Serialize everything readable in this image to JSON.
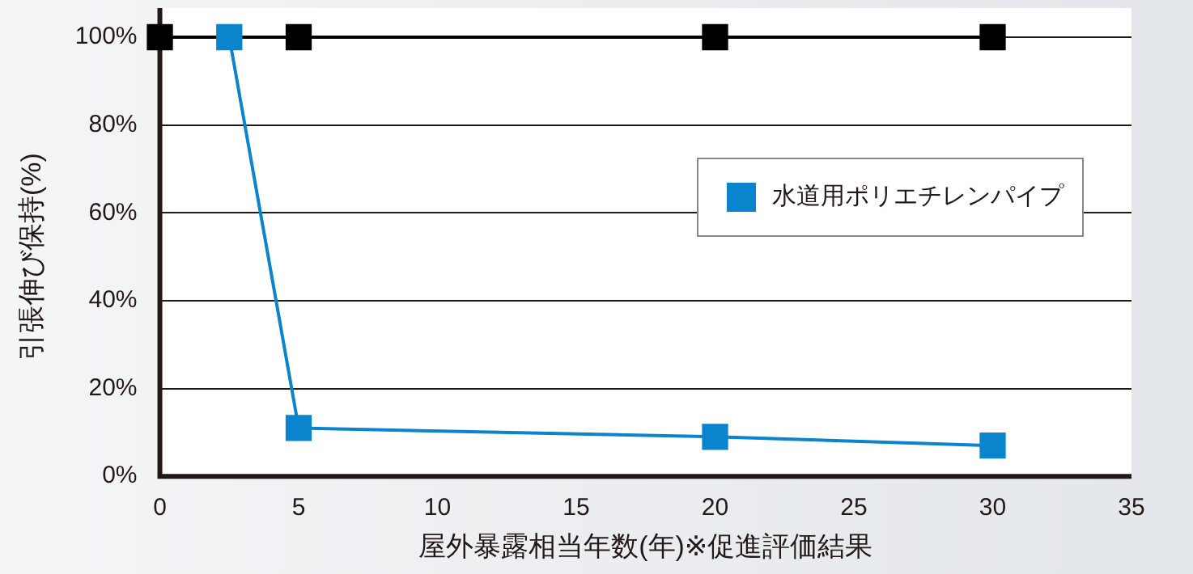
{
  "chart_data": {
    "type": "line",
    "xlabel": "屋外暴露相当年数(年)※促進評価結果",
    "ylabel": "引張伸び保持(%)",
    "xlim": [
      0,
      35
    ],
    "xticks": [
      0,
      5,
      10,
      15,
      20,
      25,
      30,
      35
    ],
    "ylim": [
      0,
      100
    ],
    "yticks": [
      {
        "value": 0,
        "label": "0%"
      },
      {
        "value": 20,
        "label": "20%"
      },
      {
        "value": 40,
        "label": "40%"
      },
      {
        "value": 60,
        "label": "60%"
      },
      {
        "value": 80,
        "label": "80%"
      },
      {
        "value": 100,
        "label": "100%"
      }
    ],
    "grid": "y",
    "legend": "right",
    "marker": "square",
    "line_style": "solid",
    "series": [
      {
        "name": "水道用ポリエチレンパイプ",
        "color": "#0a84cc",
        "x": [
          2.5,
          5,
          20,
          30
        ],
        "values": [
          100,
          11,
          9,
          7
        ]
      },
      {
        "color": "#000000",
        "x": [
          0,
          5,
          20,
          30
        ],
        "values": [
          100,
          100,
          100,
          100
        ]
      }
    ]
  }
}
